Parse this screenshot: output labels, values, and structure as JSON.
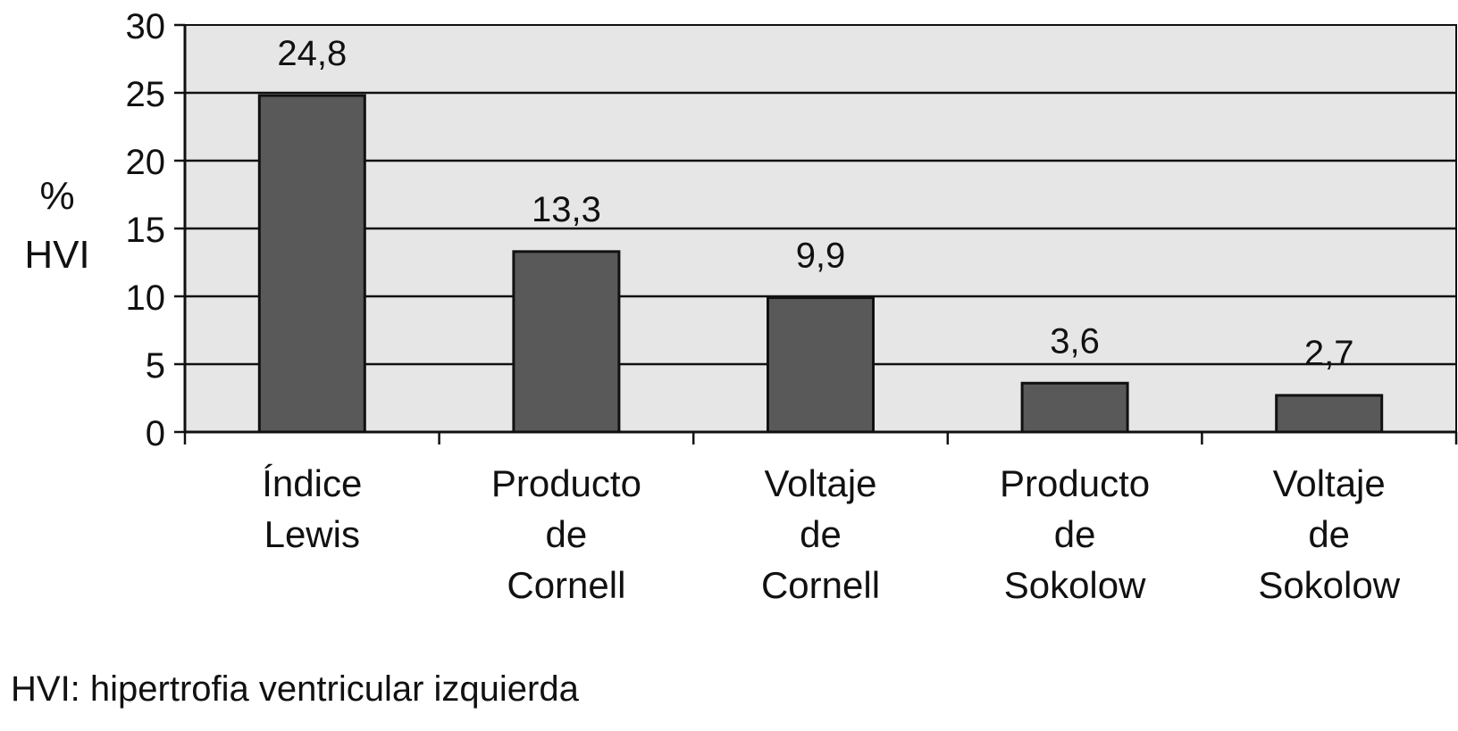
{
  "chart_data": {
    "type": "bar",
    "categories": [
      [
        "Índice",
        "Lewis"
      ],
      [
        "Producto",
        "de",
        "Cornell"
      ],
      [
        "Voltaje",
        "de",
        "Cornell"
      ],
      [
        "Producto",
        "de",
        "Sokolow"
      ],
      [
        "Voltaje",
        "de",
        "Sokolow"
      ]
    ],
    "values": [
      24.8,
      13.3,
      9.9,
      3.6,
      2.7
    ],
    "value_labels": [
      "24,8",
      "13,3",
      "9,9",
      "3,6",
      "2,7"
    ],
    "ylabel": [
      "%",
      "HVI"
    ],
    "ylim": [
      0,
      30
    ],
    "yticks": [
      0,
      5,
      10,
      15,
      20,
      25,
      30
    ],
    "grid": true,
    "colors": {
      "plot_background": "#e6e6e6",
      "bar": "#595959",
      "outline": "#111111"
    }
  },
  "footnote": "HVI: hipertrofia ventricular izquierda"
}
